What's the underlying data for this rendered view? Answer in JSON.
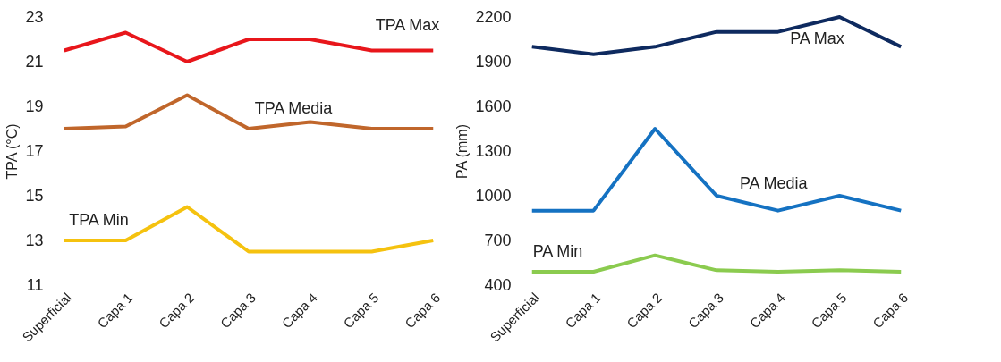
{
  "chart_data": [
    {
      "type": "line",
      "ylabel": "TPA (°C)",
      "categories": [
        "Superficial",
        "Capa 1",
        "Capa 2",
        "Capa 3",
        "Capa 4",
        "Capa 5",
        "Capa 6"
      ],
      "ylim": [
        11,
        23
      ],
      "yticks": [
        11,
        13,
        15,
        17,
        19,
        21,
        23
      ],
      "grid": false,
      "series": [
        {
          "name": "TPA Max",
          "color": "#e8161b",
          "values": [
            21.5,
            22.3,
            21,
            22,
            22,
            21.5,
            21.5
          ]
        },
        {
          "name": "TPA Media",
          "color": "#c0662b",
          "values": [
            18,
            18.1,
            19.5,
            18,
            18.3,
            18,
            18
          ]
        },
        {
          "name": "TPA Min",
          "color": "#f5c20f",
          "values": [
            13,
            13,
            14.5,
            12.5,
            12.5,
            12.5,
            13
          ]
        }
      ]
    },
    {
      "type": "line",
      "ylabel": "PA (mm)",
      "categories": [
        "Superficial",
        "Capa 1",
        "Capa 2",
        "Capa 3",
        "Capa 4",
        "Capa 5",
        "Capa 6"
      ],
      "ylim": [
        400,
        2200
      ],
      "yticks": [
        400,
        700,
        1000,
        1300,
        1600,
        1900,
        2200
      ],
      "grid": false,
      "series": [
        {
          "name": "PA Max",
          "color": "#0e2a5f",
          "values": [
            2000,
            1950,
            2000,
            2100,
            2100,
            2200,
            2000
          ]
        },
        {
          "name": "PA Media",
          "color": "#1572c2",
          "values": [
            900,
            900,
            1450,
            1000,
            900,
            1000,
            900
          ]
        },
        {
          "name": "PA Min",
          "color": "#8bcb4f",
          "values": [
            490,
            490,
            600,
            500,
            490,
            500,
            490
          ]
        }
      ]
    }
  ]
}
